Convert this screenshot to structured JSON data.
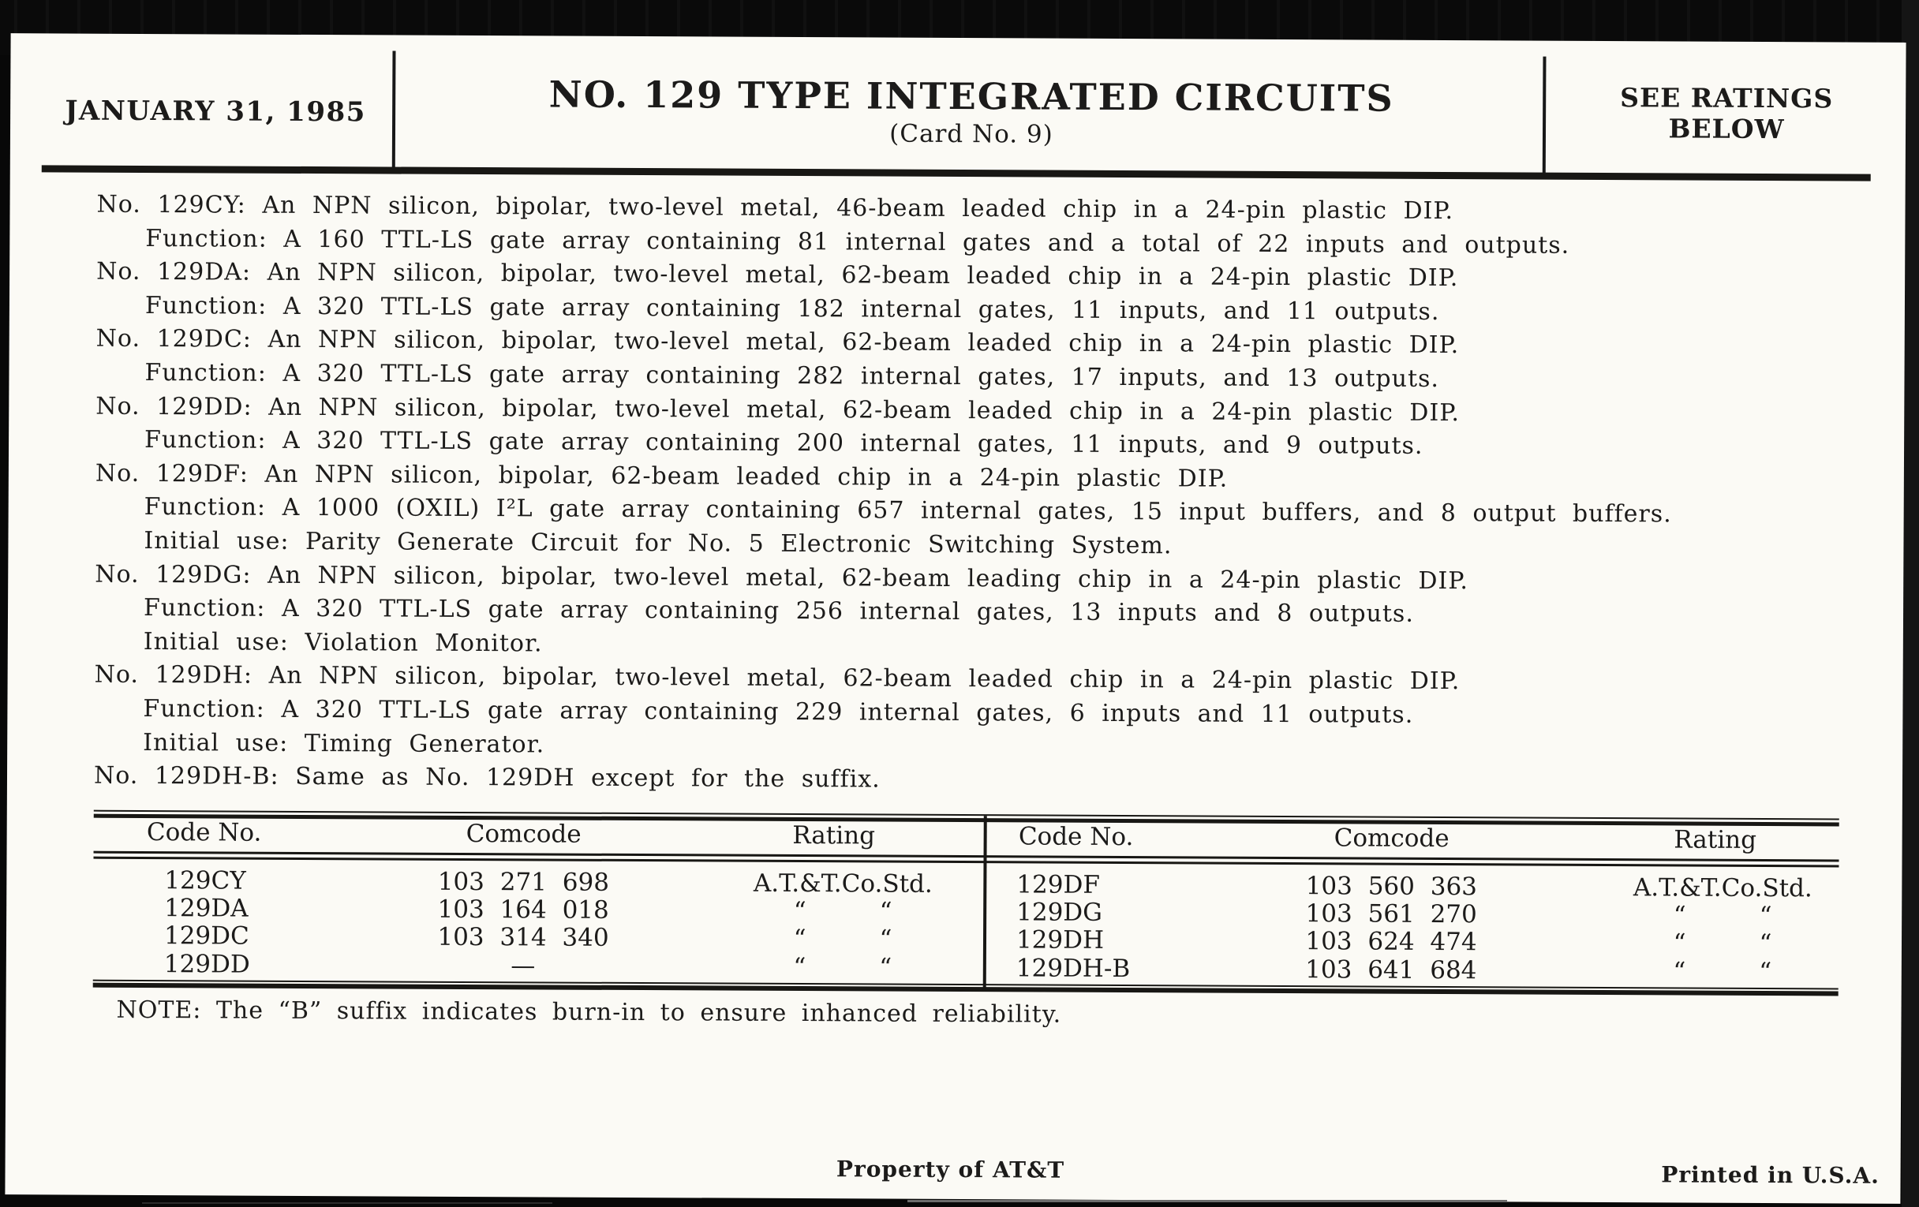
{
  "colors": {
    "paper": "#fbfaf5",
    "ink": "#1c1b1a",
    "background": "#080808"
  },
  "header": {
    "date": "JANUARY 31, 1985",
    "title": "NO. 129 TYPE INTEGRATED CIRCUITS",
    "subtitle": "(Card No. 9)",
    "ratings_line1": "SEE RATINGS",
    "ratings_line2": "BELOW"
  },
  "body_lines": [
    "No. 129CY: An NPN silicon, bipolar, two-level metal, 46-beam leaded chip in a 24-pin plastic DIP.",
    "Function: A 160 TTL-LS gate array containing 81 internal gates and a total of 22 inputs and outputs.",
    "No. 129DA: An NPN silicon, bipolar, two-level metal, 62-beam leaded chip in a 24-pin plastic DIP.",
    "Function: A 320 TTL-LS gate array containing 182 internal gates, 11 inputs, and 11 outputs.",
    "No. 129DC: An NPN silicon, bipolar, two-level metal, 62-beam leaded chip in a 24-pin plastic DIP.",
    "Function: A 320 TTL-LS gate array containing 282 internal gates, 17 inputs, and 13 outputs.",
    "No. 129DD: An NPN silicon, bipolar, two-level metal, 62-beam leaded chip in a 24-pin plastic DIP.",
    "Function: A 320 TTL-LS gate array containing 200 internal gates, 11 inputs, and 9 outputs.",
    "No. 129DF: An NPN silicon, bipolar, 62-beam leaded chip in a 24-pin plastic DIP.",
    "Function: A 1000 (OXIL) I²L gate array containing 657 internal gates, 15 input buffers, and 8 output buffers.",
    "Initial use: Parity Generate Circuit for No. 5 Electronic Switching System.",
    "No. 129DG: An NPN silicon, bipolar, two-level metal, 62-beam leading chip in a 24-pin plastic DIP.",
    "Function: A 320 TTL-LS gate array containing 256 internal gates, 13 inputs and 8 outputs.",
    "Initial use: Violation Monitor.",
    "No. 129DH: An NPN silicon, bipolar, two-level metal, 62-beam leaded chip in a 24-pin plastic DIP.",
    "Function: A 320 TTL-LS gate array containing 229 internal gates, 6 inputs and 11 outputs.",
    "Initial use: Timing Generator.",
    "No. 129DH-B: Same as No. 129DH except for the suffix."
  ],
  "table": {
    "left": {
      "headers": [
        "Code No.",
        "Comcode",
        "Rating"
      ],
      "rows": [
        [
          "129CY",
          "103 271 698",
          "A.T.&T.Co.Std."
        ],
        [
          "129DA",
          "103 164 018",
          "“   “"
        ],
        [
          "129DC",
          "103 314 340",
          "“   “"
        ],
        [
          "129DD",
          "—",
          "“   “"
        ]
      ]
    },
    "right": {
      "headers": [
        "Code No.",
        "Comcode",
        "Rating"
      ],
      "rows": [
        [
          "129DF",
          "103 560 363",
          "A.T.&T.Co.Std."
        ],
        [
          "129DG",
          "103 561 270",
          "“   “"
        ],
        [
          "129DH",
          "103 624 474",
          "“   “"
        ],
        [
          "129DH-B",
          "103 641 684",
          "“   “"
        ]
      ]
    }
  },
  "note": "NOTE: The “B” suffix indicates burn-in to ensure inhanced reliability.",
  "footer": {
    "center": "Property of AT&T",
    "right": "Printed in U.S.A."
  }
}
